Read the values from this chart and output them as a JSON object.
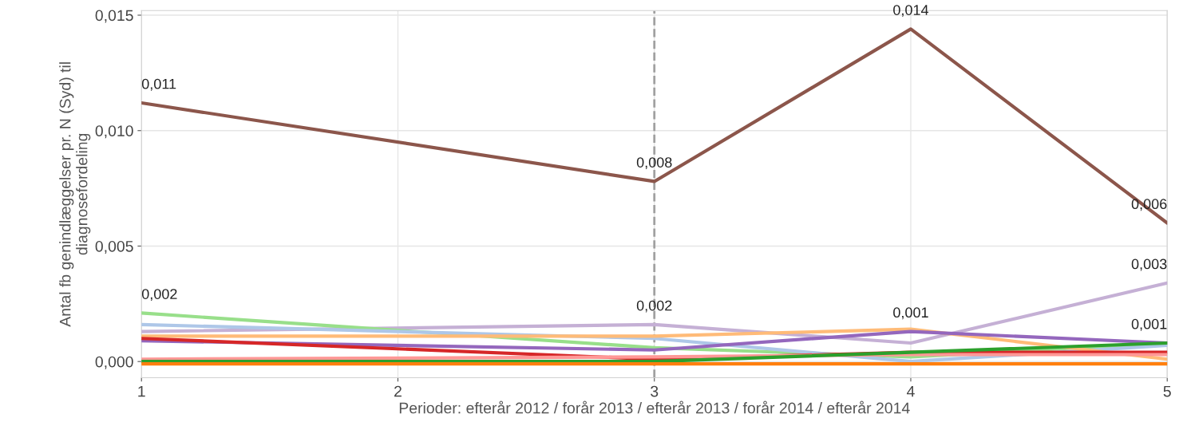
{
  "chart_data": {
    "type": "line",
    "xlabel": "Perioder: efterår 2012 / forår 2013 / efterår 2013 / forår 2014 / efterår 2014",
    "ylabel": "Antal fb genindlæggelser pr. N (Syd) til\ndiagnosefordeling",
    "x": [
      1,
      2,
      3,
      4,
      5
    ],
    "xlim": [
      1,
      5
    ],
    "xticks": [
      1,
      2,
      3,
      4,
      5
    ],
    "ylim": [
      -0.0007,
      0.0152
    ],
    "yticks": [
      {
        "value": 0,
        "label": "0,000"
      },
      {
        "value": 0.005,
        "label": "0,005"
      },
      {
        "value": 0.01,
        "label": "0,010"
      },
      {
        "value": 0.015,
        "label": "0,015"
      }
    ],
    "grid": true,
    "marker": "none",
    "line_style": "solid",
    "ref_lines": [
      {
        "axis": "x",
        "value": 3,
        "label": null,
        "color": "#a0a0a0",
        "line_style": "dashed"
      }
    ],
    "series": [
      {
        "color": "#8c564b",
        "values": [
          0.0112,
          null,
          0.0078,
          0.0144,
          0.006
        ],
        "value_labels": [
          "0,011",
          null,
          "0,008",
          "0,014",
          "0,006"
        ]
      },
      {
        "color": "#c5b0d5",
        "values": [
          0.0013,
          null,
          0.0016,
          0.0008,
          0.0034
        ],
        "value_labels": [
          null,
          null,
          "0,002",
          null,
          "0,003"
        ]
      },
      {
        "color": "#98df8a",
        "values": [
          0.0021,
          null,
          0.0006,
          0.0002,
          0.0008
        ],
        "value_labels": [
          "0,002",
          null,
          null,
          null,
          null
        ]
      },
      {
        "color": "#aec7e8",
        "values": [
          0.0016,
          null,
          0.001,
          0.0,
          0.0007
        ]
      },
      {
        "color": "#ffbb78",
        "values": [
          0.0011,
          null,
          0.0011,
          0.0014,
          0.0001
        ]
      },
      {
        "color": "#9467bd",
        "values": [
          0.0009,
          null,
          0.0005,
          0.0013,
          0.0008
        ],
        "value_labels": [
          null,
          null,
          null,
          "0,001",
          "0,001"
        ]
      },
      {
        "color": "#d62728",
        "values": [
          0.001,
          null,
          0.0001,
          0.0004,
          0.0004
        ]
      },
      {
        "color": "#ff9896",
        "values": [
          0.0001,
          null,
          0.0002,
          0.0003,
          0.0003
        ]
      },
      {
        "color": "#2ca02c",
        "values": [
          0.0,
          null,
          0.0,
          0.0004,
          0.0008
        ]
      },
      {
        "color": "#ff7f0e",
        "values": [
          -0.0001,
          null,
          -0.0001,
          -0.0001,
          -0.0001
        ]
      }
    ]
  }
}
